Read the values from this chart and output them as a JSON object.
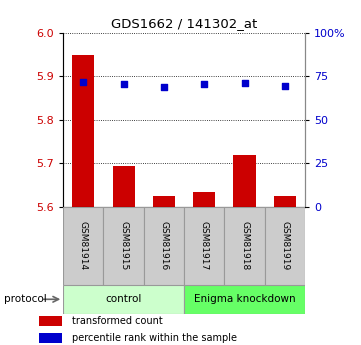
{
  "title": "GDS1662 / 141302_at",
  "samples": [
    "GSM81914",
    "GSM81915",
    "GSM81916",
    "GSM81917",
    "GSM81918",
    "GSM81919"
  ],
  "bar_values": [
    5.95,
    5.695,
    5.625,
    5.635,
    5.72,
    5.625
  ],
  "percentile_values": [
    5.888,
    5.882,
    5.875,
    5.882,
    5.884,
    5.878
  ],
  "y_min": 5.6,
  "y_max": 6.0,
  "y_ticks_left": [
    5.6,
    5.7,
    5.8,
    5.9,
    6.0
  ],
  "y_ticks_right_labels": [
    "0",
    "25",
    "50",
    "75",
    "100%"
  ],
  "y_ticks_right_vals": [
    0,
    25,
    50,
    75,
    100
  ],
  "bar_color": "#cc0000",
  "dot_color": "#0000cc",
  "groups": [
    {
      "label": "control",
      "start": 0,
      "end": 3,
      "color": "#ccffcc"
    },
    {
      "label": "Enigma knockdown",
      "start": 3,
      "end": 6,
      "color": "#66ff66"
    }
  ],
  "protocol_label": "protocol",
  "legend_bar_label": "transformed count",
  "legend_dot_label": "percentile rank within the sample",
  "tick_label_color_left": "#cc0000",
  "tick_label_color_right": "#0000cc",
  "sample_box_color": "#cccccc",
  "figsize": [
    3.61,
    3.45
  ],
  "dpi": 100
}
